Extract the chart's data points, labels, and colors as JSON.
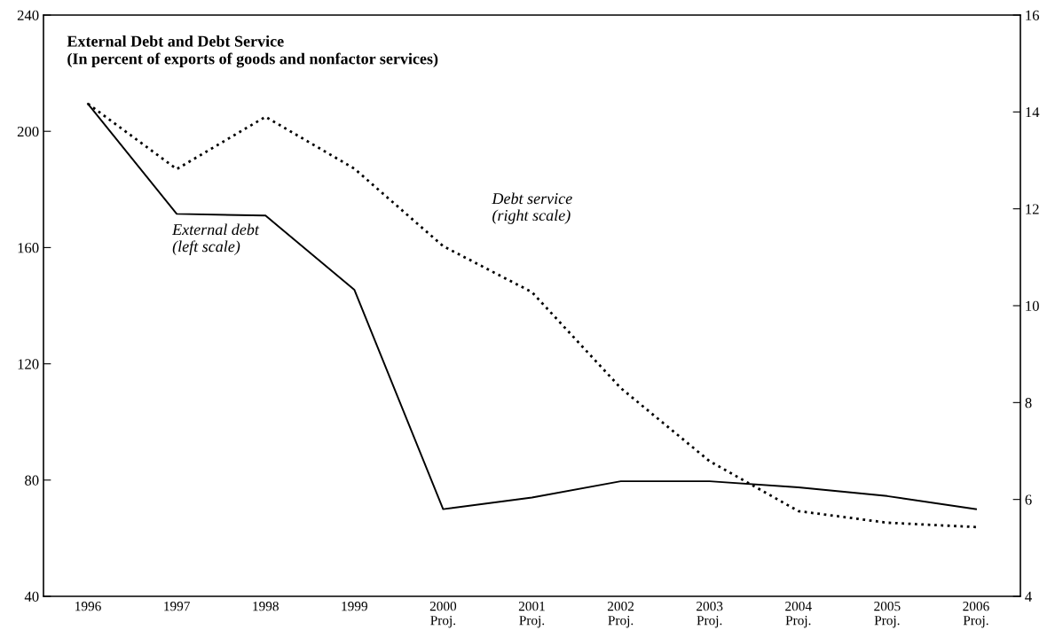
{
  "chart_data": {
    "type": "line",
    "title": "External Debt and Debt Service",
    "subtitle": "(In percent of exports of goods and nonfactor services)",
    "categories": [
      "1996",
      "1997",
      "1998",
      "1999",
      "2000\nProj.",
      "2001\nProj.",
      "2002\nProj.",
      "2003\nProj.",
      "2004\nProj.",
      "2005\nProj.",
      "2006\nProj."
    ],
    "series": [
      {
        "name": "External debt\n(left scale)",
        "color": "#000000",
        "line_style": "solid",
        "values": [
          209.5,
          171.6,
          171,
          145.5,
          70,
          74,
          79.6,
          79.6,
          77.5,
          74.5,
          70
        ]
      },
      {
        "name": "Debt service\n(right scale)",
        "color": "#000000",
        "line_style": "dotted",
        "axis": "y2",
        "values": [
          14.17,
          12.82,
          13.9,
          12.83,
          11.23,
          10.28,
          8.3,
          6.79,
          5.76,
          5.52,
          5.43
        ]
      }
    ],
    "ylim": [
      40,
      240
    ],
    "yticks": [
      40,
      80,
      120,
      160,
      200,
      240
    ],
    "y2lim": [
      4,
      16
    ],
    "y2ticks": [
      4,
      6,
      8,
      10,
      12,
      14,
      16
    ],
    "grid": false,
    "legend": false,
    "marker": "none"
  }
}
